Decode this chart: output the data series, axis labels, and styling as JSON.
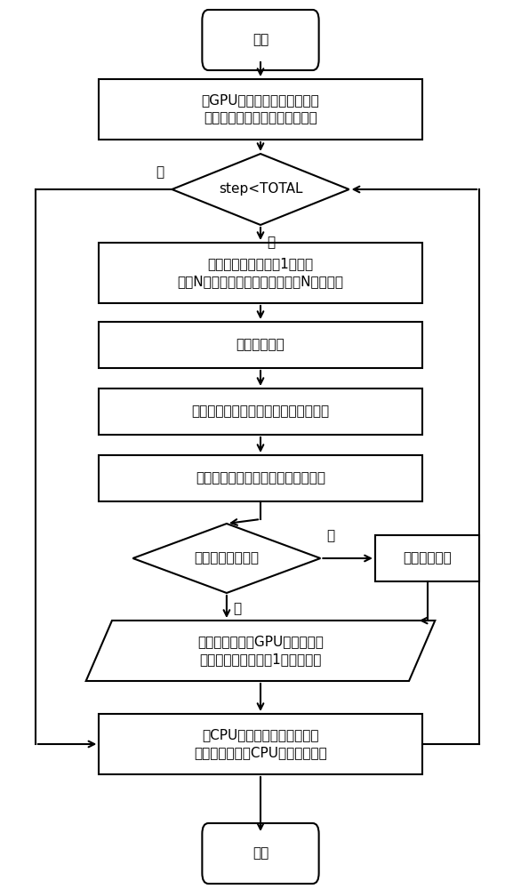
{
  "background_color": "#ffffff",
  "start_text": "开始",
  "end_text": "结束",
  "init_text": "在GPU全局内存上开辟空间，\n并初始化粒子信息和随机数数组",
  "diamond1_text": "step<TOTAL",
  "gen_random_text": "根据粒子属性标记为1的粒子\n个数N，调用随机数生成函数产生N个随机数",
  "calc_prob_text": "计算碰撞几率",
  "cex_judge_text": "离子推进器中粒子的电荷交换碰撞判断",
  "update_text": "更新所有粒子速度、位置和属性标记",
  "diamond2_text": "粒子是否到达边界",
  "delete_text": "删除粒子信息",
  "store_text": "存储粒子信息到GPU全局内存，\n统计粒子属性标记为1的粒子个数",
  "cpu_store_text": "在CPU主机端开辟内存空间，\n将计算结果传回CPU主机端内存中",
  "yes_text": "是",
  "no_text": "否",
  "lw": 1.5,
  "fontsize": 11
}
